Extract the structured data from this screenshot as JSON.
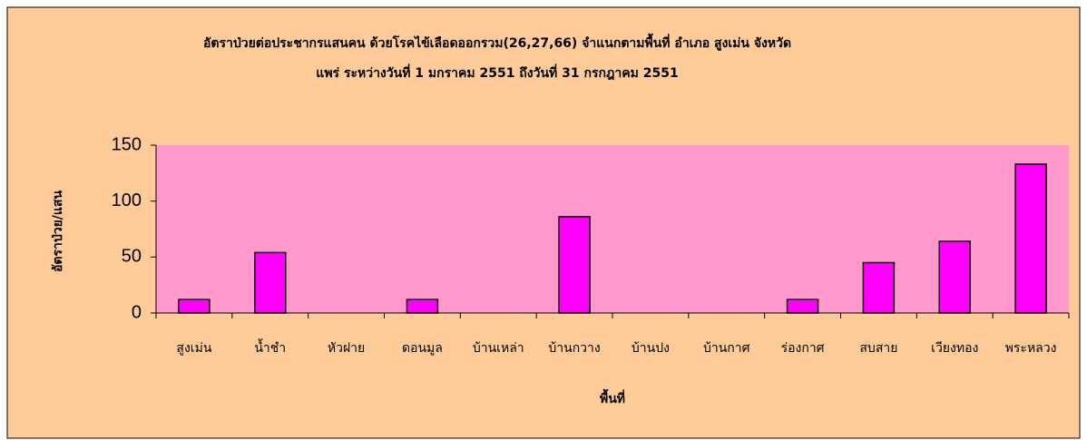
{
  "chart_data": {
    "type": "bar",
    "title": "อัตราป่วยต่อประชากรแสนคน ด้วยโรคไข้เลือดออกรวม(26,27,66) จำแนกตามพื้นที่    อำเภอ  สูงเม่น จังหวัด",
    "subtitle": "แพร่  ระหว่างวันที่  1 มกราคม 2551  ถึงวันที่  31 กรกฎาคม 2551",
    "x_label": "พื้นที่",
    "y_label": "อัตราป่วย/แสน",
    "categories": [
      "สูงเม่น",
      "น้ำชำ",
      "หัวฝาย",
      "ดอนมูล",
      "บ้านเหล่า",
      "บ้านกวาง",
      "บ้านปง",
      "บ้านกาศ",
      "ร่องกาศ",
      "สบสาย",
      "เวียงทอง",
      "พระหลวง"
    ],
    "values": [
      12,
      54,
      0,
      12,
      0,
      86,
      0,
      0,
      12,
      45,
      64,
      133
    ],
    "color": "#ff00ff",
    "ylim": [
      0,
      150
    ],
    "yticks": [
      0,
      50,
      100,
      150
    ]
  }
}
